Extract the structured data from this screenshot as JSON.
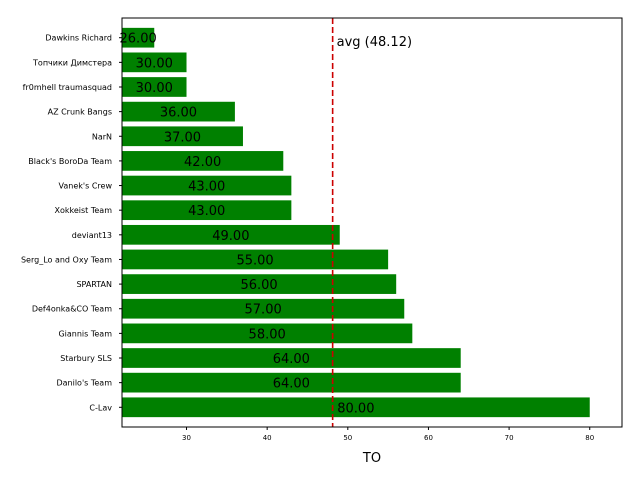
{
  "chart_data": {
    "type": "bar",
    "orientation": "horizontal",
    "title": "",
    "xlabel": "TO",
    "ylabel": "",
    "xlim": [
      22,
      84
    ],
    "xticks": [
      30,
      40,
      50,
      60,
      70,
      80
    ],
    "bar_color": "#008000",
    "categories": [
      "Dawkins Richard",
      "Топчики Димстера",
      "fr0mhell traumasquad",
      "AZ Crunk Bangs",
      "NarN",
      "Black's BoroDa Team",
      "Vanek's Crew",
      "Xokkeist Team",
      "deviant13",
      "Serg_Lo and Oxy Team",
      "SPARTAN",
      "Def4onka&CO Team",
      "Giannis Team",
      "Starbury SLS",
      "Danilo's Team",
      "C-Lav"
    ],
    "values": [
      26,
      30,
      30,
      36,
      37,
      42,
      43,
      43,
      49,
      55,
      56,
      57,
      58,
      64,
      64,
      80
    ],
    "value_labels": [
      "26.00",
      "30.00",
      "30.00",
      "36.00",
      "37.00",
      "42.00",
      "43.00",
      "43.00",
      "49.00",
      "55.00",
      "56.00",
      "57.00",
      "58.00",
      "64.00",
      "64.00",
      "80.00"
    ],
    "average": {
      "value": 48.12,
      "label": "avg (48.12)",
      "color": "#cc0000"
    }
  }
}
